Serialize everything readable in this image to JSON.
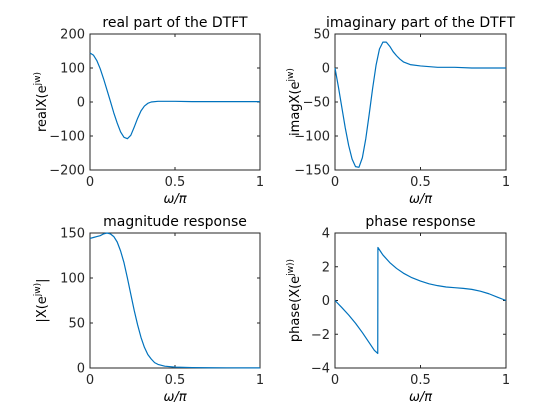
{
  "chart_data": [
    {
      "type": "line",
      "title": "real part of the DTFT",
      "xlabel": "ω/π",
      "ylabel": "realX(e^(jw))",
      "xlim": [
        0,
        1
      ],
      "ylim": [
        -200,
        200
      ],
      "xticks": [
        0,
        0.5,
        1
      ],
      "xtick_labels": [
        "0",
        "0.5",
        "1"
      ],
      "yticks": [
        -200,
        -100,
        0,
        100,
        200
      ],
      "ytick_labels": [
        "−200",
        "−100",
        "0",
        "100",
        "200"
      ],
      "grid": false,
      "series": [
        {
          "color": "#0072BD",
          "x": [
            0,
            0.02,
            0.04,
            0.06,
            0.08,
            0.1,
            0.12,
            0.14,
            0.16,
            0.18,
            0.2,
            0.22,
            0.24,
            0.26,
            0.28,
            0.3,
            0.32,
            0.34,
            0.36,
            0.4,
            0.45,
            0.5,
            0.6,
            0.7,
            0.8,
            0.9,
            1.0
          ],
          "y": [
            144,
            138,
            122,
            98,
            68,
            35,
            2,
            -32,
            -62,
            -88,
            -104,
            -108,
            -98,
            -74,
            -48,
            -26,
            -12,
            -4,
            0,
            2,
            2,
            2,
            1,
            1,
            1,
            1,
            1
          ]
        }
      ]
    },
    {
      "type": "line",
      "title": "imaginary part of the DTFT",
      "xlabel": "ω/π",
      "ylabel": "imagX(e^(jw))",
      "xlim": [
        0,
        1
      ],
      "ylim": [
        -150,
        50
      ],
      "xticks": [
        0,
        0.5,
        1
      ],
      "xtick_labels": [
        "0",
        "0.5",
        "1"
      ],
      "yticks": [
        -150,
        -100,
        -50,
        0,
        50
      ],
      "ytick_labels": [
        "−150",
        "−100",
        "−50",
        "0",
        "50"
      ],
      "grid": false,
      "series": [
        {
          "color": "#0072BD",
          "x": [
            0,
            0.02,
            0.04,
            0.06,
            0.08,
            0.1,
            0.12,
            0.14,
            0.16,
            0.18,
            0.2,
            0.22,
            0.24,
            0.26,
            0.28,
            0.3,
            0.32,
            0.34,
            0.36,
            0.38,
            0.4,
            0.44,
            0.5,
            0.6,
            0.7,
            0.8,
            0.9,
            1.0
          ],
          "y": [
            0,
            -28,
            -58,
            -88,
            -114,
            -134,
            -145,
            -146,
            -132,
            -104,
            -68,
            -30,
            4,
            28,
            38,
            38,
            32,
            24,
            18,
            13,
            9,
            5,
            3,
            1,
            1,
            0,
            0,
            0
          ]
        }
      ]
    },
    {
      "type": "line",
      "title": "magnitude response",
      "xlabel": "ω/π",
      "ylabel": "|X(e^(jw))|",
      "xlim": [
        0,
        1
      ],
      "ylim": [
        0,
        150
      ],
      "xticks": [
        0,
        0.5,
        1
      ],
      "xtick_labels": [
        "0",
        "0.5",
        "1"
      ],
      "yticks": [
        0,
        50,
        100,
        150
      ],
      "ytick_labels": [
        "0",
        "50",
        "100",
        "150"
      ],
      "grid": false,
      "series": [
        {
          "color": "#0072BD",
          "x": [
            0,
            0.02,
            0.04,
            0.06,
            0.08,
            0.1,
            0.12,
            0.14,
            0.16,
            0.18,
            0.2,
            0.22,
            0.24,
            0.26,
            0.28,
            0.3,
            0.32,
            0.34,
            0.36,
            0.38,
            0.4,
            0.44,
            0.5,
            0.6,
            0.7,
            0.8,
            0.9,
            1.0
          ],
          "y": [
            144,
            145,
            146,
            147,
            149,
            150,
            149,
            146,
            140,
            130,
            117,
            100,
            82,
            64,
            48,
            34,
            23,
            15,
            10,
            6,
            4,
            2,
            1,
            0.5,
            0.3,
            0.2,
            0.1,
            0.1
          ]
        }
      ]
    },
    {
      "type": "line",
      "title": "phase response",
      "xlabel": "ω/π",
      "ylabel": "phase(X(e^(jw)))",
      "xlim": [
        0,
        1
      ],
      "ylim": [
        -4,
        4
      ],
      "xticks": [
        0,
        0.5,
        1
      ],
      "xtick_labels": [
        "0",
        "0.5",
        "1"
      ],
      "yticks": [
        -4,
        -2,
        0,
        2,
        4
      ],
      "ytick_labels": [
        "−4",
        "−2",
        "0",
        "2",
        "4"
      ],
      "grid": false,
      "series": [
        {
          "color": "#0072BD",
          "x": [
            0,
            0.04,
            0.08,
            0.12,
            0.16,
            0.2,
            0.23,
            0.25,
            0.251,
            0.28,
            0.32,
            0.36,
            0.4,
            0.45,
            0.5,
            0.55,
            0.6,
            0.65,
            0.7,
            0.75,
            0.8,
            0.85,
            0.9,
            0.95,
            1.0
          ],
          "y": [
            0,
            -0.42,
            -0.86,
            -1.35,
            -1.9,
            -2.5,
            -2.95,
            -3.14,
            3.14,
            2.7,
            2.25,
            1.9,
            1.62,
            1.35,
            1.15,
            0.99,
            0.88,
            0.8,
            0.76,
            0.72,
            0.66,
            0.55,
            0.4,
            0.2,
            0.0
          ]
        }
      ]
    }
  ]
}
